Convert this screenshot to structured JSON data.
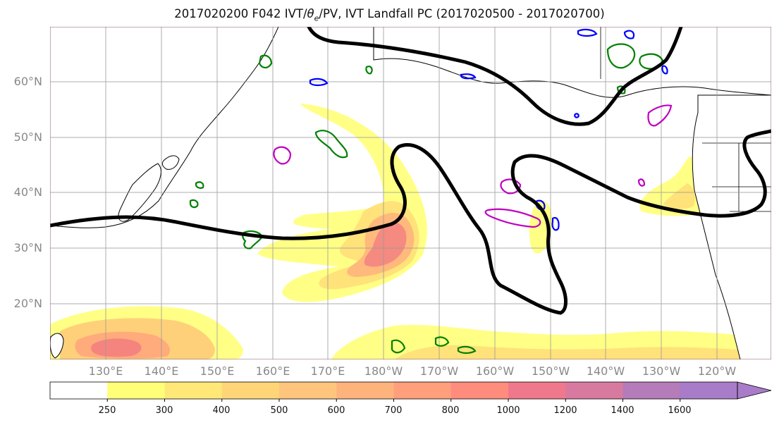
{
  "title": {
    "prefix": "2017020200 F042 IVT/",
    "theta": "θ",
    "sub": "e",
    "suffix": "/PV, IVT Landfall PC (2017020500 - 2017020700)"
  },
  "latitude_labels": [
    "60°N",
    "50°N",
    "40°N",
    "30°N",
    "20°N"
  ],
  "longitude_labels": [
    "130°E",
    "140°E",
    "150°E",
    "160°E",
    "170°E",
    "180°W",
    "170°W",
    "160°W",
    "150°W",
    "140°W",
    "130°W",
    "120°W"
  ],
  "colorbar": {
    "ticks": [
      "250",
      "300",
      "400",
      "500",
      "600",
      "700",
      "800",
      "1000",
      "1200",
      "1400",
      "1600"
    ],
    "colors": [
      "#ffffff",
      "#ffff78",
      "#ffe878",
      "#ffd578",
      "#ffc57c",
      "#ffb37c",
      "#ff9f7c",
      "#ff8c7c",
      "#f0788c",
      "#d87aa0",
      "#b47cb8",
      "#a87cc8"
    ]
  },
  "contour_colors": {
    "landfall_pc": "#000000",
    "pv": "#008000",
    "theta_e": "#0000ff",
    "other": "#c000c0"
  }
}
